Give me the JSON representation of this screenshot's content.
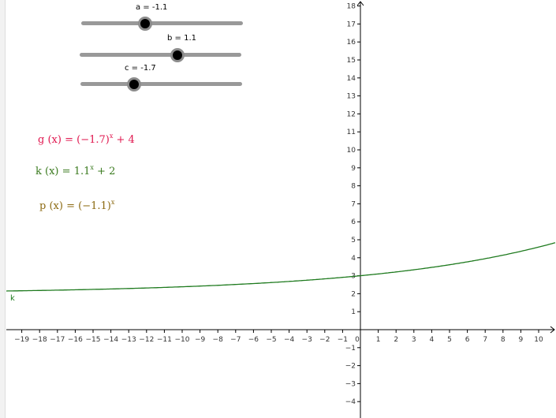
{
  "sliders": [
    {
      "id": "a",
      "label": "a = -1.1",
      "value": -1.1,
      "min": -5,
      "max": 5
    },
    {
      "id": "b",
      "label": "b = 1.1",
      "value": 1.1,
      "min": -5,
      "max": 5
    },
    {
      "id": "c",
      "label": "c = -1.7",
      "value": -1.7,
      "min": -5,
      "max": 5
    }
  ],
  "algebra": {
    "g": {
      "name": "g",
      "arg": "(x)",
      "eq": "=",
      "base": "(−1.7)",
      "exp": "x",
      "tail": "+ 4",
      "color": "#e0174f"
    },
    "k": {
      "name": "k",
      "arg": "(x)",
      "eq": "=",
      "base": "1.1",
      "exp": "x",
      "tail": "+ 2",
      "color": "#3a7a1e"
    },
    "p": {
      "name": "p",
      "arg": "(x)",
      "eq": "=",
      "base": "(−1.1)",
      "exp": "x",
      "tail": "",
      "color": "#8c6a12"
    }
  },
  "graph_labels": {
    "k": "k"
  },
  "colors": {
    "k_curve": "#1e7a1e",
    "axes": "#000000",
    "tick_text": "#333333",
    "label_k": "#1e7a1e"
  },
  "axes": {
    "x_ticks": [
      "−19",
      "−18",
      "−17",
      "−16",
      "−15",
      "−14",
      "−13",
      "−12",
      "−11",
      "−10",
      "−9",
      "−8",
      "−7",
      "−6",
      "−5",
      "−4",
      "−3",
      "−2",
      "−1",
      "0",
      "1",
      "2",
      "3",
      "4",
      "5",
      "6",
      "7",
      "8",
      "9",
      "10"
    ],
    "y_ticks": [
      "−4",
      "−3",
      "−2",
      "−1",
      "1",
      "2",
      "3",
      "4",
      "5",
      "6",
      "7",
      "8",
      "9",
      "10",
      "11",
      "12",
      "13",
      "14",
      "15",
      "16",
      "17",
      "18"
    ],
    "x_range": [
      -19.5,
      10.8
    ],
    "y_range": [
      -4.5,
      18.5
    ]
  },
  "chart_data": {
    "type": "line",
    "series": [
      {
        "name": "k",
        "function": "1.1^x + 2",
        "x_range": [
          -20,
          11
        ]
      }
    ],
    "x_tick_labels": [
      "−19",
      "−18",
      "−17",
      "−16",
      "−15",
      "−14",
      "−13",
      "−12",
      "−11",
      "−10",
      "−9",
      "−8",
      "−7",
      "−6",
      "−5",
      "−4",
      "−3",
      "−2",
      "−1",
      "0",
      "1",
      "2",
      "3",
      "4",
      "5",
      "6",
      "7",
      "8",
      "9",
      "10"
    ],
    "y_tick_labels": [
      "−4",
      "−3",
      "−2",
      "−1",
      "1",
      "2",
      "3",
      "4",
      "5",
      "6",
      "7",
      "8",
      "9",
      "10",
      "11",
      "12",
      "13",
      "14",
      "15",
      "16",
      "17",
      "18"
    ],
    "xlim": [
      -19.5,
      10.8
    ],
    "ylim": [
      -4.5,
      18.5
    ],
    "grid": false
  }
}
